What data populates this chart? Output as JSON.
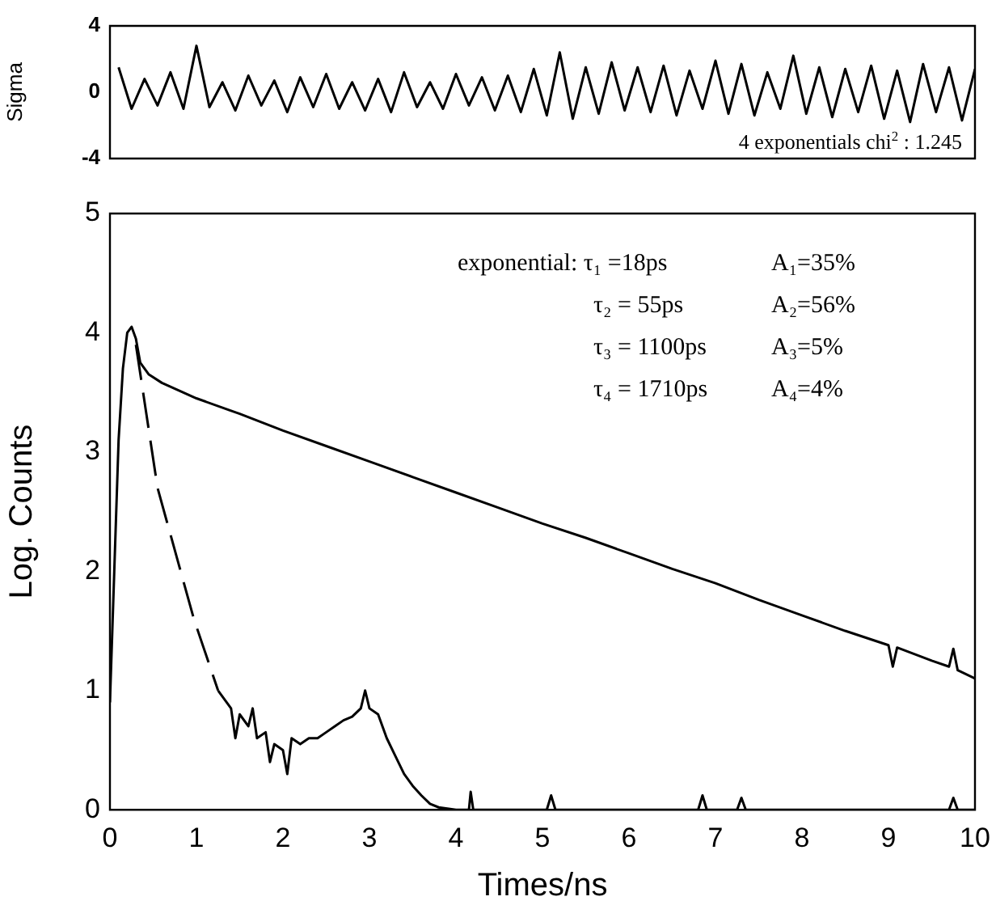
{
  "chart_data": [
    {
      "type": "line",
      "ylabel": "Sigma",
      "xlim": [
        0,
        10
      ],
      "ylim": [
        -4,
        4
      ],
      "yticks": [
        -4,
        0,
        4
      ],
      "tick_labels": "y",
      "grid": false,
      "legend": false,
      "marker": "none",
      "annotations": [
        "4 exponentials chi$^{2}$ : 1.245"
      ],
      "series": [
        {
          "color": "#000000",
          "line_style": "solid",
          "x": [
            0.1,
            0.25,
            0.4,
            0.55,
            0.7,
            0.85,
            1.0,
            1.15,
            1.3,
            1.45,
            1.6,
            1.75,
            1.9,
            2.05,
            2.2,
            2.35,
            2.5,
            2.65,
            2.8,
            2.95,
            3.1,
            3.25,
            3.4,
            3.55,
            3.7,
            3.85,
            4.0,
            4.15,
            4.3,
            4.45,
            4.6,
            4.75,
            4.9,
            5.05,
            5.2,
            5.35,
            5.5,
            5.65,
            5.8,
            5.95,
            6.1,
            6.25,
            6.4,
            6.55,
            6.7,
            6.85,
            7.0,
            7.15,
            7.3,
            7.45,
            7.6,
            7.75,
            7.9,
            8.05,
            8.2,
            8.35,
            8.5,
            8.65,
            8.8,
            8.95,
            9.1,
            9.25,
            9.4,
            9.55,
            9.7,
            9.85,
            10.0
          ],
          "values": [
            1.5,
            -1.0,
            0.8,
            -0.8,
            1.2,
            -1.0,
            2.8,
            -0.9,
            0.6,
            -1.1,
            1.0,
            -0.8,
            0.7,
            -1.2,
            0.9,
            -0.9,
            1.1,
            -1.0,
            0.6,
            -1.1,
            0.8,
            -1.2,
            1.2,
            -0.9,
            0.6,
            -1.0,
            1.1,
            -0.8,
            0.9,
            -1.1,
            1.0,
            -1.2,
            1.4,
            -1.4,
            2.4,
            -1.6,
            1.5,
            -1.3,
            1.8,
            -1.1,
            1.5,
            -1.2,
            1.6,
            -1.4,
            1.3,
            -1.0,
            1.9,
            -1.3,
            1.7,
            -1.4,
            1.2,
            -1.0,
            2.2,
            -1.3,
            1.5,
            -1.5,
            1.4,
            -1.2,
            1.6,
            -1.6,
            1.3,
            -1.8,
            1.7,
            -1.2,
            1.5,
            -1.7,
            1.4
          ]
        }
      ]
    },
    {
      "type": "line",
      "xlabel": "Times/ns",
      "ylabel": "Log. Counts",
      "xlim": [
        0,
        10
      ],
      "xticks": [
        0,
        1,
        2,
        3,
        4,
        5,
        6,
        7,
        8,
        9,
        10
      ],
      "ylim": [
        0,
        5
      ],
      "yticks": [
        0,
        1,
        2,
        3,
        4,
        5
      ],
      "grid": false,
      "legend": false,
      "marker": "none",
      "annotations": [
        "exponential: τ₁ =18ps",
        "A₁=35%",
        "τ₂ = 55ps",
        "A₂=56%",
        "τ₃ = 1100ps",
        "A₃=5%",
        "τ₄ = 1710ps",
        "A₄=4%"
      ],
      "series": [
        {
          "color": "#000000",
          "line_style": "solid",
          "x": [
            0,
            0.05,
            0.1,
            0.15,
            0.2,
            0.25,
            0.3,
            0.35,
            0.45,
            0.6,
            1,
            1.5,
            2,
            2.5,
            3,
            3.5,
            4,
            4.5,
            5,
            5.5,
            6,
            6.5,
            7,
            7.5,
            8,
            8.5,
            9,
            9.05,
            9.1,
            9.5,
            9.7,
            9.75,
            9.8,
            10
          ],
          "values": [
            0.9,
            2.0,
            3.1,
            3.7,
            4.0,
            4.05,
            3.95,
            3.75,
            3.65,
            3.58,
            3.45,
            3.32,
            3.18,
            3.05,
            2.92,
            2.79,
            2.66,
            2.53,
            2.4,
            2.28,
            2.15,
            2.02,
            1.9,
            1.76,
            1.63,
            1.5,
            1.38,
            1.2,
            1.36,
            1.25,
            1.2,
            1.35,
            1.17,
            1.1
          ]
        },
        {
          "color": "#000000",
          "line_style": "dashed",
          "x": [
            0.3,
            0.55,
            0.97,
            1.25
          ],
          "values": [
            3.9,
            2.7,
            1.6,
            1.0
          ]
        },
        {
          "color": "#000000",
          "line_style": "solid",
          "x": [
            1.25,
            1.4,
            1.45,
            1.5,
            1.6,
            1.65,
            1.7,
            1.8,
            1.85,
            1.9,
            2.0,
            2.05,
            2.1,
            2.2,
            2.3,
            2.4,
            2.5,
            2.6,
            2.7,
            2.8,
            2.9,
            2.95,
            3.0,
            3.1,
            3.2,
            3.3,
            3.4,
            3.5,
            3.6,
            3.7,
            3.8,
            4.0,
            4.15,
            4.17,
            4.2,
            5.05,
            5.1,
            5.15,
            6.8,
            6.85,
            6.9,
            7.25,
            7.3,
            7.35,
            9.7,
            9.75,
            9.8,
            10
          ],
          "values": [
            1.0,
            0.85,
            0.6,
            0.8,
            0.7,
            0.85,
            0.6,
            0.65,
            0.4,
            0.55,
            0.5,
            0.3,
            0.6,
            0.55,
            0.6,
            0.6,
            0.65,
            0.7,
            0.75,
            0.78,
            0.85,
            1.0,
            0.85,
            0.8,
            0.6,
            0.45,
            0.3,
            0.2,
            0.12,
            0.05,
            0.02,
            0,
            0,
            0.15,
            0,
            0,
            0.12,
            0,
            0,
            0.12,
            0,
            0,
            0.1,
            0,
            0,
            0.1,
            0,
            0
          ]
        }
      ]
    }
  ]
}
